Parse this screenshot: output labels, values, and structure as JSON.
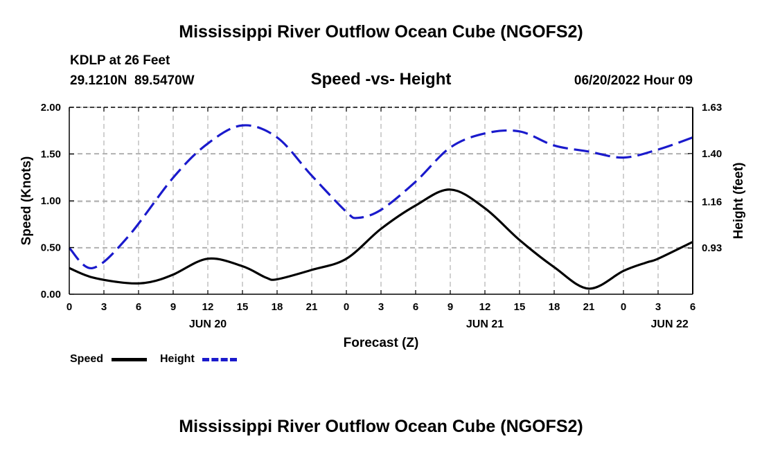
{
  "page_title": "Mississippi River Outflow Ocean Cube (NGOFS2)",
  "footer_title": "Mississippi River Outflow Ocean Cube (NGOFS2)",
  "station": {
    "name": "KDLP at 26 Feet",
    "coords": "29.1210N  89.5470W"
  },
  "date_label": "06/20/2022 Hour 09",
  "chart_data": {
    "type": "line",
    "title": "Speed -vs- Height",
    "xlabel": "Forecast (Z)",
    "ylabel_left": "Speed (Knots)",
    "ylabel_right": "Height (feet)",
    "x_range": [
      0,
      54
    ],
    "x_ticks": [
      0,
      3,
      6,
      9,
      12,
      15,
      18,
      21,
      24,
      27,
      30,
      33,
      36,
      39,
      42,
      45,
      48,
      51,
      54
    ],
    "x_tick_labels": [
      "0",
      "3",
      "6",
      "9",
      "12",
      "15",
      "18",
      "21",
      "0",
      "3",
      "6",
      "9",
      "12",
      "15",
      "18",
      "21",
      "0",
      "3",
      "6"
    ],
    "date_labels": [
      {
        "x": 12,
        "label": "JUN 20"
      },
      {
        "x": 36,
        "label": "JUN 21"
      },
      {
        "x": 52,
        "label": "JUN 22"
      }
    ],
    "ylim_left": [
      0,
      2
    ],
    "y_ticks_left": [
      0,
      0.5,
      1.0,
      1.5,
      2.0
    ],
    "y_tick_labels_left": [
      "0.00",
      "0.50",
      "1.00",
      "1.50",
      "2.00"
    ],
    "ylim_right": [
      0.7,
      1.63
    ],
    "y_ticks_right": [
      0.93,
      1.16,
      1.4,
      1.63
    ],
    "y_tick_labels_right": [
      "0.93",
      "1.16",
      "1.40",
      "1.63"
    ],
    "grid": true,
    "series": [
      {
        "name": "Speed",
        "axis": "left",
        "color": "#000000",
        "dash": "solid",
        "x": [
          0,
          2,
          5,
          7,
          9,
          12,
          15,
          17,
          18,
          21,
          24,
          27,
          30,
          33,
          36,
          39,
          42,
          45,
          48,
          50,
          51,
          54
        ],
        "values": [
          0.28,
          0.18,
          0.12,
          0.13,
          0.21,
          0.38,
          0.3,
          0.18,
          0.16,
          0.26,
          0.38,
          0.7,
          0.95,
          1.12,
          0.92,
          0.58,
          0.29,
          0.06,
          0.25,
          0.34,
          0.38,
          0.56
        ]
      },
      {
        "name": "Height",
        "axis": "right",
        "color": "#1a1acc",
        "dash": "dashed",
        "x": [
          0,
          2,
          5,
          9,
          12,
          15,
          18,
          21,
          24,
          25,
          27,
          30,
          33,
          36,
          39,
          42,
          45,
          48,
          51,
          54
        ],
        "values": [
          0.93,
          0.83,
          0.98,
          1.28,
          1.45,
          1.54,
          1.48,
          1.29,
          1.11,
          1.08,
          1.12,
          1.26,
          1.43,
          1.5,
          1.51,
          1.44,
          1.41,
          1.38,
          1.42,
          1.48
        ]
      }
    ],
    "legend": {
      "placement": "bottom-left",
      "entries": [
        "Speed",
        "Height"
      ]
    }
  }
}
